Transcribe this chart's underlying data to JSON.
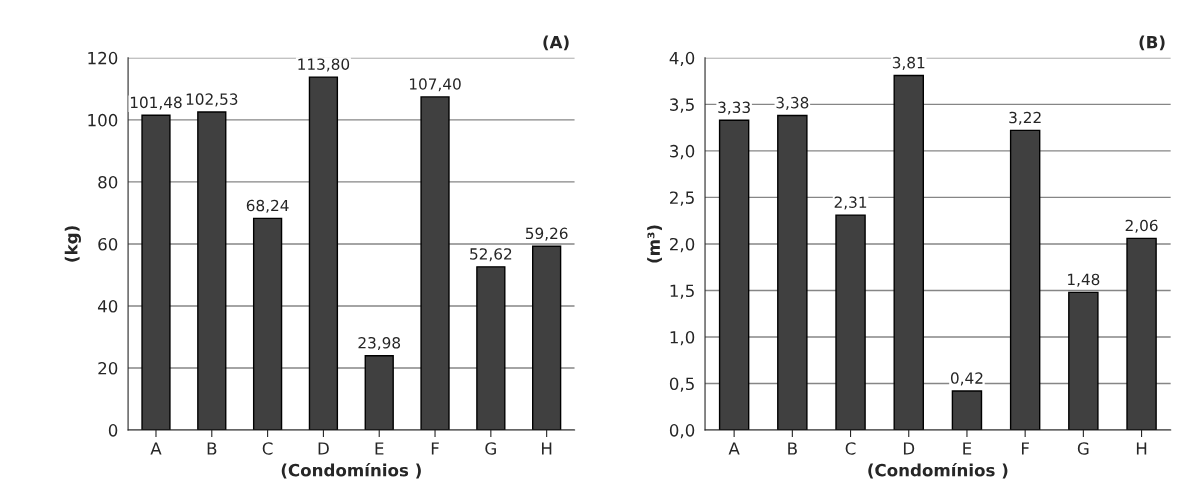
{
  "chart_data": [
    {
      "type": "bar",
      "ylabel": "(kg)",
      "xlabel": "(Condomínios )",
      "annotations": [
        "(A)"
      ],
      "categories": [
        "A",
        "B",
        "C",
        "D",
        "E",
        "F",
        "G",
        "H"
      ],
      "values": [
        101.48,
        102.53,
        68.24,
        113.8,
        23.98,
        107.4,
        52.62,
        59.26
      ],
      "value_labels": [
        "101,48",
        "102,53",
        "68,24",
        "113,80",
        "23,98",
        "107,40",
        "52,62",
        "59,26"
      ],
      "color": "#404040",
      "ylim": [
        0,
        120
      ],
      "yticks": [
        0,
        20,
        40,
        60,
        80,
        100,
        120
      ],
      "grid": "y"
    },
    {
      "type": "bar",
      "ylabel": "(m³)",
      "xlabel": "(Condomínios )",
      "annotations": [
        "(B)"
      ],
      "categories": [
        "A",
        "B",
        "C",
        "D",
        "E",
        "F",
        "G",
        "H"
      ],
      "values": [
        3.33,
        3.38,
        2.31,
        3.81,
        0.42,
        3.22,
        1.48,
        2.06
      ],
      "value_labels": [
        "3,33",
        "3,38",
        "2,31",
        "3,81",
        "0,42",
        "3,22",
        "1,48",
        "2,06"
      ],
      "color": "#404040",
      "ylim": [
        0,
        4.0
      ],
      "yticks": [
        {
          "value": 0,
          "label": "0,0"
        },
        {
          "value": 0.5,
          "label": "0,5"
        },
        {
          "value": 1.0,
          "label": "1,0"
        },
        {
          "value": 1.5,
          "label": "1,5"
        },
        {
          "value": 2.0,
          "label": "2,0"
        },
        {
          "value": 2.5,
          "label": "2,5"
        },
        {
          "value": 3.0,
          "label": "3,0"
        },
        {
          "value": 3.5,
          "label": "3,5"
        },
        {
          "value": 4.0,
          "label": "4,0"
        }
      ],
      "grid": "y"
    }
  ]
}
